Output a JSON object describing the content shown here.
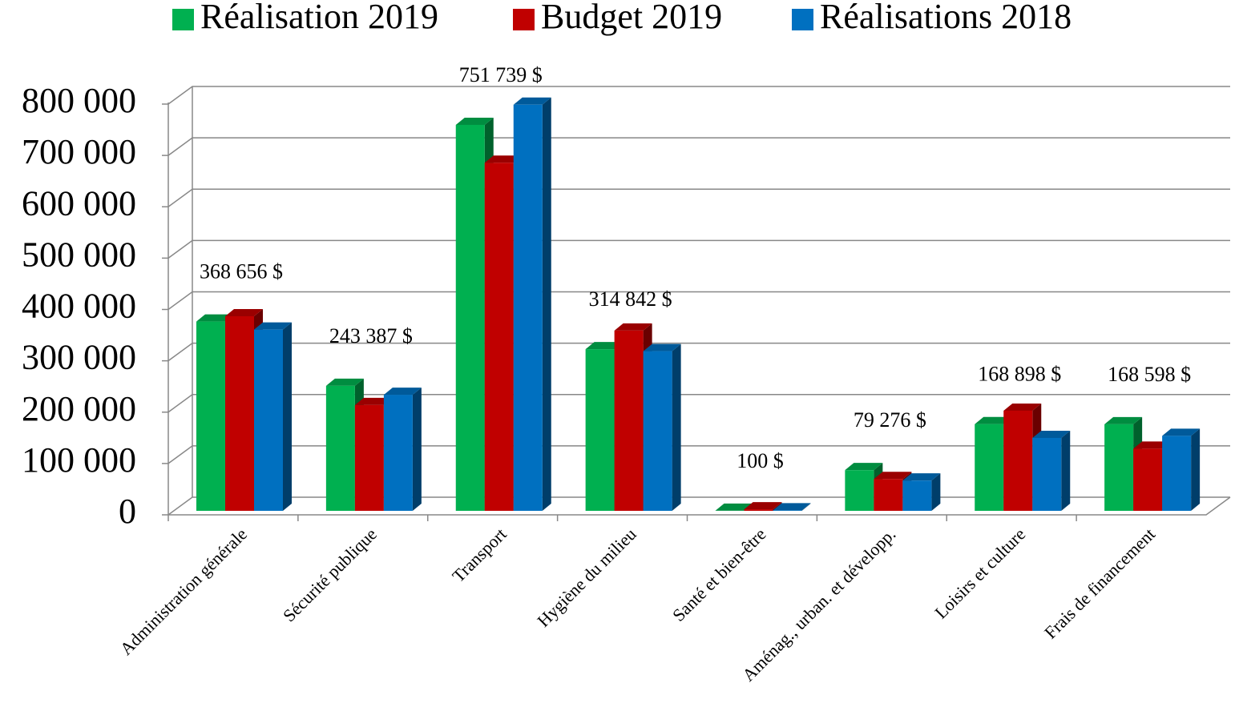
{
  "chart_data": {
    "type": "bar3d",
    "categories": [
      "Administration générale",
      "Sécurité publique",
      "Transport",
      "Hygiène du milieu",
      "Santé et bien-être",
      "Aménag., urban. et développ.",
      "Loisirs et culture",
      "Frais de financement"
    ],
    "series": [
      {
        "name": "Réalisation 2019",
        "color": "#00b050",
        "values": [
          368656,
          243387,
          751739,
          314842,
          100,
          79276,
          168898,
          168598
        ],
        "value_labels": [
          "368 656  $",
          "243 387  $",
          "751 739  $",
          "314 842  $",
          "100  $",
          "79 276  $",
          "168 898  $",
          "168 598  $"
        ]
      },
      {
        "name": "Budget 2019",
        "color": "#c00000",
        "values": [
          379000,
          206000,
          678000,
          351000,
          3000,
          62000,
          195000,
          121000
        ]
      },
      {
        "name": "Réalisations 2018",
        "color": "#0070c0",
        "values": [
          353000,
          226000,
          791000,
          311000,
          1000,
          59000,
          142000,
          146000
        ]
      }
    ],
    "ylim": [
      0,
      800000
    ],
    "yticks": [
      {
        "value": 0,
        "label": "0"
      },
      {
        "value": 100000,
        "label": "100 000"
      },
      {
        "value": 200000,
        "label": "200 000"
      },
      {
        "value": 300000,
        "label": "300 000"
      },
      {
        "value": 400000,
        "label": "400 000"
      },
      {
        "value": 500000,
        "label": "500 000"
      },
      {
        "value": 600000,
        "label": "600 000"
      },
      {
        "value": 700000,
        "label": "700 000"
      },
      {
        "value": 800000,
        "label": "800 000"
      }
    ],
    "grid": true,
    "legend": "top"
  }
}
